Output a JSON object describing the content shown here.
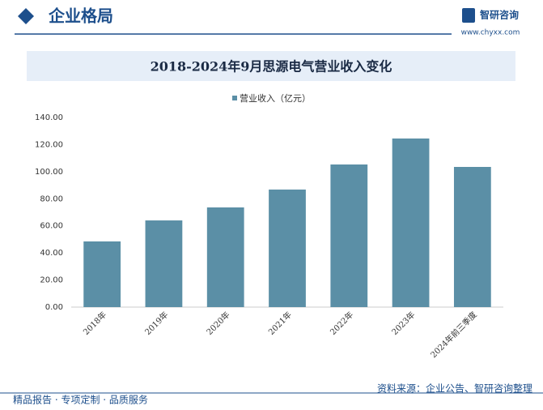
{
  "header": {
    "section": "企业格局",
    "brand": "智研咨询",
    "url": "www.chyxx.com"
  },
  "chart_data": {
    "type": "bar",
    "title": "2018-2024年9月思源电气营业收入变化",
    "categories": [
      "2018年",
      "2019年",
      "2020年",
      "2021年",
      "2022年",
      "2023年",
      "2024年前三季度"
    ],
    "series": [
      {
        "name": "营业收入（亿元）",
        "color": "#5b8fa6",
        "values": [
          48.5,
          64.0,
          73.6,
          86.8,
          105.3,
          124.5,
          103.5
        ]
      }
    ],
    "ylim": [
      0,
      140
    ],
    "yticks": [
      {
        "value": 0,
        "label": "0.00"
      },
      {
        "value": 20,
        "label": "20.00"
      },
      {
        "value": 40,
        "label": "40.00"
      },
      {
        "value": 60,
        "label": "60.00"
      },
      {
        "value": 80,
        "label": "80.00"
      },
      {
        "value": 100,
        "label": "100.00"
      },
      {
        "value": 120,
        "label": "120.00"
      },
      {
        "value": 140,
        "label": "140.00"
      }
    ],
    "grid": false
  },
  "footer": {
    "left": "精品报告 · 专项定制 · 品质服务",
    "source": "资料来源：企业公告、智研咨询整理"
  }
}
